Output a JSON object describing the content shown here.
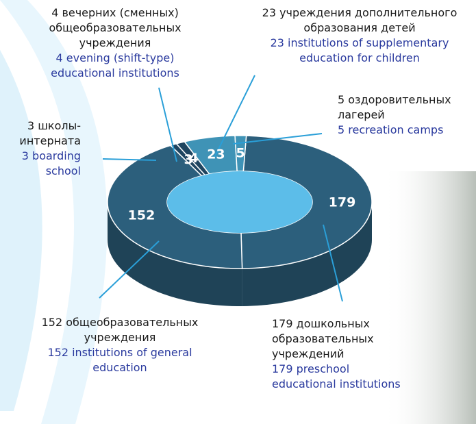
{
  "chart_data": {
    "type": "donut",
    "categories": [
      "179 дошкольных образовательных учреждений",
      "152 общеобразовательных учреждения",
      "3 школы-интерната",
      "4 вечерних (сменных) общеобразовательных учреждения",
      "23 учреждения дополнительного образования детей",
      "5 оздоровительных лагерей"
    ],
    "labels_en": [
      "179 preschool educational institutions",
      "152  institutions of general education",
      "3 boarding school",
      "4 evening (shift-type) educational institutions",
      "23 institutions of supplementary education for children",
      "5 recreation camps"
    ],
    "values": [
      179,
      152,
      3,
      4,
      23,
      5
    ],
    "colors": [
      "#2c5f7c",
      "#2c5f7c",
      "#1f4560",
      "#1f4560",
      "#3f93b6",
      "#3f93b6"
    ],
    "hole_color": "#5cbde9"
  }
}
